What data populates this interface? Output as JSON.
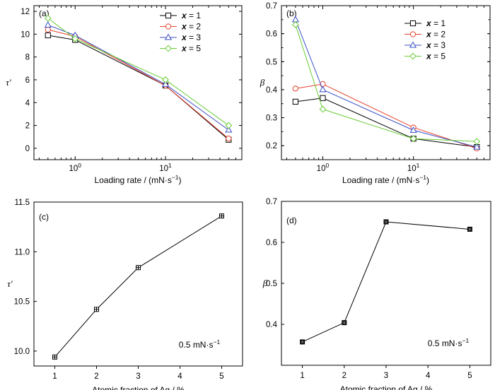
{
  "chart_data": [
    {
      "panel": "(a)",
      "type": "line",
      "xscale": "log",
      "xlim": [
        0.35,
        70
      ],
      "ylim": [
        -1,
        12.5
      ],
      "xticks": [
        1,
        10
      ],
      "xtick_labels": [
        "10^0",
        "10^1"
      ],
      "yticks": [
        0,
        2,
        4,
        6,
        8,
        10,
        12
      ],
      "xlabel": "Loading rate / (mN·s⁻¹)",
      "ylabel": "τ′",
      "legend_position": "top-right",
      "x": [
        0.5,
        1,
        10,
        50
      ],
      "series": [
        {
          "name": "x = 1",
          "color": "#000000",
          "marker": "square",
          "values": [
            9.9,
            9.5,
            5.5,
            0.75
          ]
        },
        {
          "name": "x = 2",
          "color": "#e8412c",
          "marker": "circle",
          "values": [
            10.4,
            9.8,
            5.5,
            0.85
          ]
        },
        {
          "name": "x = 3",
          "color": "#3a4fc6",
          "marker": "triangle",
          "values": [
            10.8,
            9.9,
            5.6,
            1.6
          ]
        },
        {
          "name": "x = 5",
          "color": "#66cc33",
          "marker": "diamond",
          "values": [
            11.4,
            9.6,
            6.0,
            2.0
          ]
        }
      ]
    },
    {
      "panel": "(b)",
      "type": "line",
      "xscale": "log",
      "xlim": [
        0.35,
        70
      ],
      "ylim": [
        0.15,
        0.7
      ],
      "xticks": [
        1,
        10
      ],
      "xtick_labels": [
        "10^0",
        "10^1"
      ],
      "yticks": [
        0.2,
        0.3,
        0.4,
        0.5,
        0.6,
        0.7
      ],
      "xlabel": "Loading rate / (mN·s⁻¹)",
      "ylabel": "β",
      "legend_position": "top-right",
      "x": [
        0.5,
        1,
        10,
        50
      ],
      "series": [
        {
          "name": "x = 1",
          "color": "#000000",
          "marker": "square",
          "values": [
            0.357,
            0.37,
            0.225,
            0.195
          ]
        },
        {
          "name": "x = 2",
          "color": "#e8412c",
          "marker": "circle",
          "values": [
            0.404,
            0.42,
            0.265,
            0.19
          ]
        },
        {
          "name": "x = 3",
          "color": "#3a4fc6",
          "marker": "triangle",
          "values": [
            0.65,
            0.4,
            0.255,
            0.195
          ]
        },
        {
          "name": "x = 5",
          "color": "#66cc33",
          "marker": "diamond",
          "values": [
            0.632,
            0.33,
            0.225,
            0.215
          ]
        }
      ]
    },
    {
      "panel": "(c)",
      "type": "line",
      "xlim": [
        0.5,
        5.5
      ],
      "ylim": [
        9.85,
        11.5
      ],
      "xticks": [
        1,
        2,
        3,
        4,
        5
      ],
      "yticks": [
        10.0,
        10.5,
        11.0,
        11.5
      ],
      "ytick_labels": [
        "10.0",
        "10.5",
        "11.0",
        "11.5"
      ],
      "xlabel": "Atomic fraction of Ag / %",
      "ylabel": "τ′",
      "annotation": "0.5 mN·s⁻¹",
      "series": [
        {
          "color": "#000000",
          "marker": "square-cross",
          "x": [
            1,
            2,
            3,
            5
          ],
          "values": [
            9.94,
            10.42,
            10.84,
            11.36
          ]
        }
      ]
    },
    {
      "panel": "(d)",
      "type": "line",
      "xlim": [
        0.5,
        5.5
      ],
      "ylim": [
        0.3,
        0.7
      ],
      "xticks": [
        1,
        2,
        3,
        4,
        5
      ],
      "yticks": [
        0.4,
        0.5,
        0.6,
        0.7
      ],
      "xlabel": "Atomic fraction of Ag / %",
      "ylabel": "β",
      "annotation": "0.5 mN·s⁻¹",
      "series": [
        {
          "color": "#000000",
          "marker": "filled-square",
          "x": [
            1,
            2,
            3,
            5
          ],
          "values": [
            0.357,
            0.404,
            0.65,
            0.632
          ]
        }
      ]
    }
  ]
}
